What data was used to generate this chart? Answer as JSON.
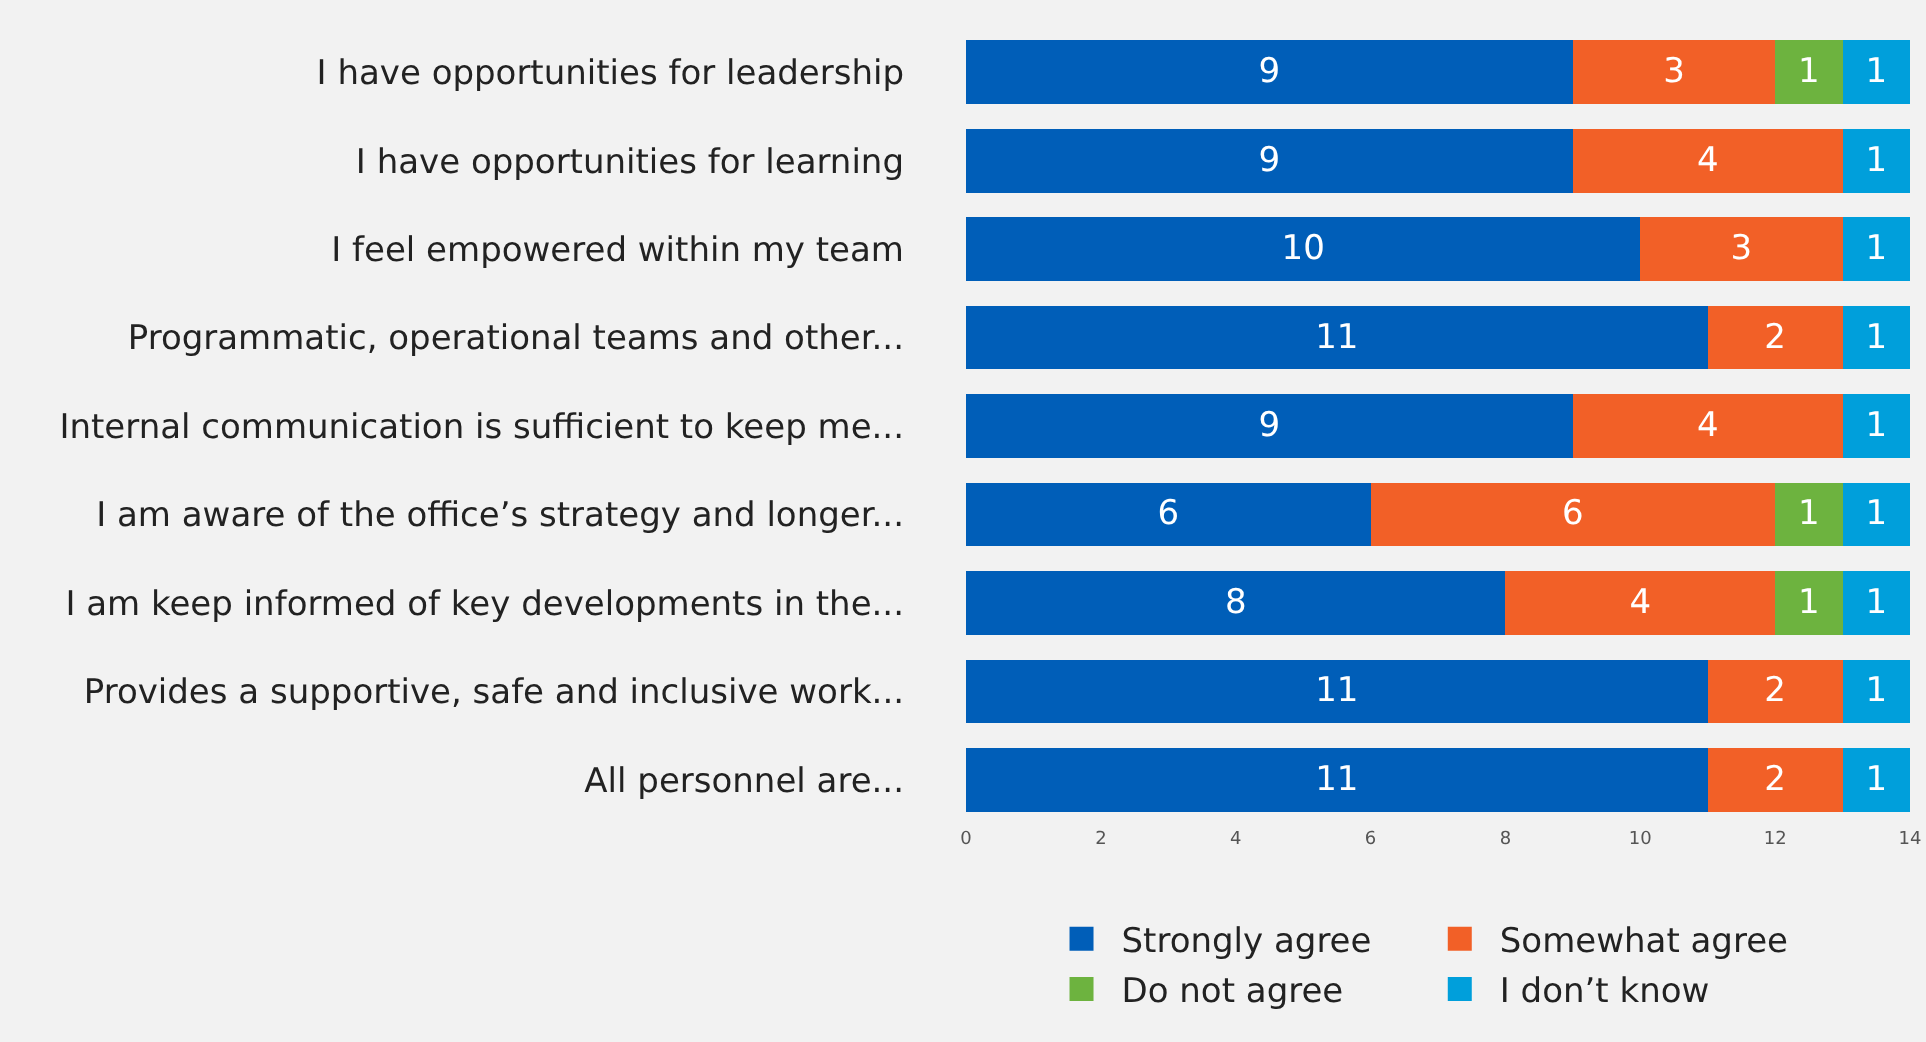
{
  "chart_data": {
    "type": "bar",
    "orientation": "horizontal",
    "stacked": true,
    "data_labels": true,
    "legend": "bottom",
    "grid": false,
    "categories": [
      "I have opportunities for leadership",
      "I have opportunities for learning",
      "I feel empowered within my team",
      "Programmatic, operational teams and other...",
      "Internal communication is sufficient to keep me...",
      "I am aware of the office’s strategy and longer...",
      "I am keep informed of key developments in the...",
      "Provides a supportive, safe and inclusive work...",
      "All personnel are..."
    ],
    "series": [
      {
        "name": "Strongly agree",
        "color": "#005eb8",
        "values": [
          9,
          9,
          10,
          11,
          9,
          6,
          8,
          11,
          11
        ]
      },
      {
        "name": "Somewhat agree",
        "color": "#f26027",
        "values": [
          3,
          4,
          3,
          2,
          4,
          6,
          4,
          2,
          2
        ]
      },
      {
        "name": "Do not agree",
        "color": "#6db33f",
        "values": [
          1,
          null,
          null,
          null,
          null,
          1,
          1,
          null,
          null
        ]
      },
      {
        "name": "I don’t know",
        "color": "#009fdb",
        "values": [
          1,
          1,
          1,
          1,
          1,
          1,
          1,
          1,
          1
        ]
      }
    ],
    "xlim": [
      0,
      14
    ],
    "xticks": [
      0,
      2,
      4,
      6,
      8,
      10,
      12,
      14
    ]
  }
}
